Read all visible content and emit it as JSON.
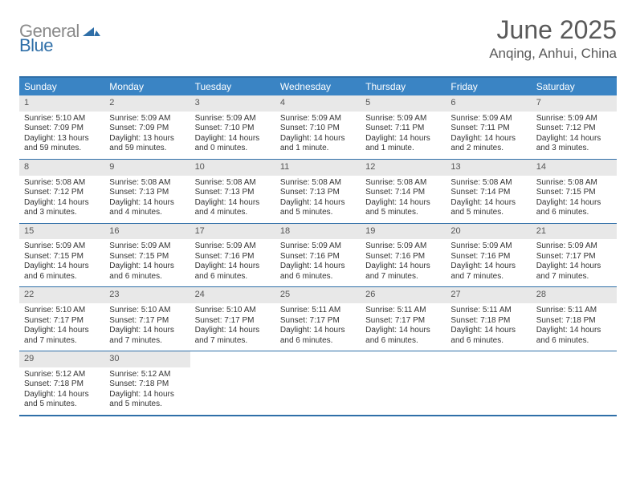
{
  "logo": {
    "text_gray": "General",
    "text_blue": "Blue",
    "mark_color": "#2f6fa8"
  },
  "title": "June 2025",
  "location": "Anqing, Anhui, China",
  "colors": {
    "header_bg": "#3a84c4",
    "border": "#2f6fa8",
    "daynum_bg": "#e8e8e8",
    "text_muted": "#595959"
  },
  "day_names": [
    "Sunday",
    "Monday",
    "Tuesday",
    "Wednesday",
    "Thursday",
    "Friday",
    "Saturday"
  ],
  "weeks": [
    [
      {
        "n": "1",
        "sr": "Sunrise: 5:10 AM",
        "ss": "Sunset: 7:09 PM",
        "dl1": "Daylight: 13 hours",
        "dl2": "and 59 minutes."
      },
      {
        "n": "2",
        "sr": "Sunrise: 5:09 AM",
        "ss": "Sunset: 7:09 PM",
        "dl1": "Daylight: 13 hours",
        "dl2": "and 59 minutes."
      },
      {
        "n": "3",
        "sr": "Sunrise: 5:09 AM",
        "ss": "Sunset: 7:10 PM",
        "dl1": "Daylight: 14 hours",
        "dl2": "and 0 minutes."
      },
      {
        "n": "4",
        "sr": "Sunrise: 5:09 AM",
        "ss": "Sunset: 7:10 PM",
        "dl1": "Daylight: 14 hours",
        "dl2": "and 1 minute."
      },
      {
        "n": "5",
        "sr": "Sunrise: 5:09 AM",
        "ss": "Sunset: 7:11 PM",
        "dl1": "Daylight: 14 hours",
        "dl2": "and 1 minute."
      },
      {
        "n": "6",
        "sr": "Sunrise: 5:09 AM",
        "ss": "Sunset: 7:11 PM",
        "dl1": "Daylight: 14 hours",
        "dl2": "and 2 minutes."
      },
      {
        "n": "7",
        "sr": "Sunrise: 5:09 AM",
        "ss": "Sunset: 7:12 PM",
        "dl1": "Daylight: 14 hours",
        "dl2": "and 3 minutes."
      }
    ],
    [
      {
        "n": "8",
        "sr": "Sunrise: 5:08 AM",
        "ss": "Sunset: 7:12 PM",
        "dl1": "Daylight: 14 hours",
        "dl2": "and 3 minutes."
      },
      {
        "n": "9",
        "sr": "Sunrise: 5:08 AM",
        "ss": "Sunset: 7:13 PM",
        "dl1": "Daylight: 14 hours",
        "dl2": "and 4 minutes."
      },
      {
        "n": "10",
        "sr": "Sunrise: 5:08 AM",
        "ss": "Sunset: 7:13 PM",
        "dl1": "Daylight: 14 hours",
        "dl2": "and 4 minutes."
      },
      {
        "n": "11",
        "sr": "Sunrise: 5:08 AM",
        "ss": "Sunset: 7:13 PM",
        "dl1": "Daylight: 14 hours",
        "dl2": "and 5 minutes."
      },
      {
        "n": "12",
        "sr": "Sunrise: 5:08 AM",
        "ss": "Sunset: 7:14 PM",
        "dl1": "Daylight: 14 hours",
        "dl2": "and 5 minutes."
      },
      {
        "n": "13",
        "sr": "Sunrise: 5:08 AM",
        "ss": "Sunset: 7:14 PM",
        "dl1": "Daylight: 14 hours",
        "dl2": "and 5 minutes."
      },
      {
        "n": "14",
        "sr": "Sunrise: 5:08 AM",
        "ss": "Sunset: 7:15 PM",
        "dl1": "Daylight: 14 hours",
        "dl2": "and 6 minutes."
      }
    ],
    [
      {
        "n": "15",
        "sr": "Sunrise: 5:09 AM",
        "ss": "Sunset: 7:15 PM",
        "dl1": "Daylight: 14 hours",
        "dl2": "and 6 minutes."
      },
      {
        "n": "16",
        "sr": "Sunrise: 5:09 AM",
        "ss": "Sunset: 7:15 PM",
        "dl1": "Daylight: 14 hours",
        "dl2": "and 6 minutes."
      },
      {
        "n": "17",
        "sr": "Sunrise: 5:09 AM",
        "ss": "Sunset: 7:16 PM",
        "dl1": "Daylight: 14 hours",
        "dl2": "and 6 minutes."
      },
      {
        "n": "18",
        "sr": "Sunrise: 5:09 AM",
        "ss": "Sunset: 7:16 PM",
        "dl1": "Daylight: 14 hours",
        "dl2": "and 6 minutes."
      },
      {
        "n": "19",
        "sr": "Sunrise: 5:09 AM",
        "ss": "Sunset: 7:16 PM",
        "dl1": "Daylight: 14 hours",
        "dl2": "and 7 minutes."
      },
      {
        "n": "20",
        "sr": "Sunrise: 5:09 AM",
        "ss": "Sunset: 7:16 PM",
        "dl1": "Daylight: 14 hours",
        "dl2": "and 7 minutes."
      },
      {
        "n": "21",
        "sr": "Sunrise: 5:09 AM",
        "ss": "Sunset: 7:17 PM",
        "dl1": "Daylight: 14 hours",
        "dl2": "and 7 minutes."
      }
    ],
    [
      {
        "n": "22",
        "sr": "Sunrise: 5:10 AM",
        "ss": "Sunset: 7:17 PM",
        "dl1": "Daylight: 14 hours",
        "dl2": "and 7 minutes."
      },
      {
        "n": "23",
        "sr": "Sunrise: 5:10 AM",
        "ss": "Sunset: 7:17 PM",
        "dl1": "Daylight: 14 hours",
        "dl2": "and 7 minutes."
      },
      {
        "n": "24",
        "sr": "Sunrise: 5:10 AM",
        "ss": "Sunset: 7:17 PM",
        "dl1": "Daylight: 14 hours",
        "dl2": "and 7 minutes."
      },
      {
        "n": "25",
        "sr": "Sunrise: 5:11 AM",
        "ss": "Sunset: 7:17 PM",
        "dl1": "Daylight: 14 hours",
        "dl2": "and 6 minutes."
      },
      {
        "n": "26",
        "sr": "Sunrise: 5:11 AM",
        "ss": "Sunset: 7:17 PM",
        "dl1": "Daylight: 14 hours",
        "dl2": "and 6 minutes."
      },
      {
        "n": "27",
        "sr": "Sunrise: 5:11 AM",
        "ss": "Sunset: 7:18 PM",
        "dl1": "Daylight: 14 hours",
        "dl2": "and 6 minutes."
      },
      {
        "n": "28",
        "sr": "Sunrise: 5:11 AM",
        "ss": "Sunset: 7:18 PM",
        "dl1": "Daylight: 14 hours",
        "dl2": "and 6 minutes."
      }
    ],
    [
      {
        "n": "29",
        "sr": "Sunrise: 5:12 AM",
        "ss": "Sunset: 7:18 PM",
        "dl1": "Daylight: 14 hours",
        "dl2": "and 5 minutes."
      },
      {
        "n": "30",
        "sr": "Sunrise: 5:12 AM",
        "ss": "Sunset: 7:18 PM",
        "dl1": "Daylight: 14 hours",
        "dl2": "and 5 minutes."
      },
      {
        "empty": true
      },
      {
        "empty": true
      },
      {
        "empty": true
      },
      {
        "empty": true
      },
      {
        "empty": true
      }
    ]
  ]
}
